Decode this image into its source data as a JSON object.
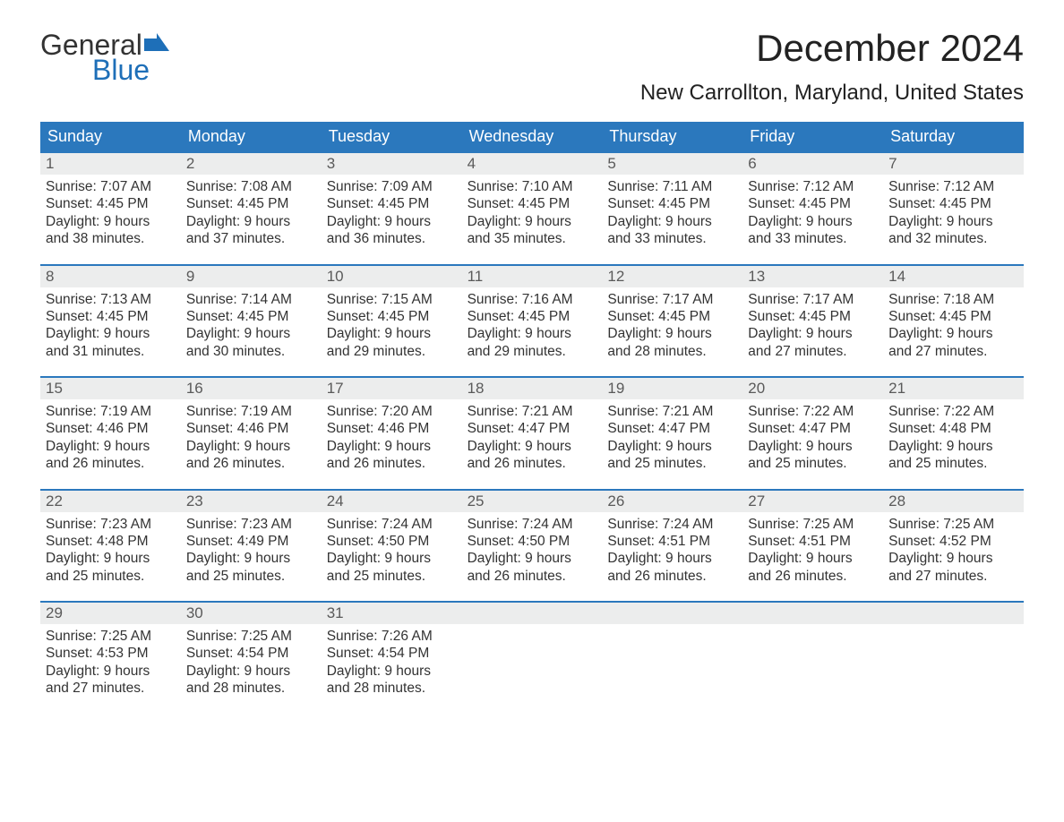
{
  "logo": {
    "word1": "General",
    "word2": "Blue",
    "flag_color": "#1e6fb8"
  },
  "title": "December 2024",
  "location": "New Carrollton, Maryland, United States",
  "colors": {
    "header_bg": "#2b78bd",
    "header_text": "#ffffff",
    "week_border": "#2b78bd",
    "daynum_bg": "#eceded",
    "daynum_text": "#5a5a5a",
    "body_text": "#333333",
    "background": "#ffffff"
  },
  "typography": {
    "title_fontsize": 42,
    "location_fontsize": 24,
    "dayheader_fontsize": 18,
    "daynum_fontsize": 17,
    "cell_fontsize": 15.5
  },
  "day_headers": [
    "Sunday",
    "Monday",
    "Tuesday",
    "Wednesday",
    "Thursday",
    "Friday",
    "Saturday"
  ],
  "labels": {
    "sunrise": "Sunrise:",
    "sunset": "Sunset:",
    "daylight": "Daylight:"
  },
  "weeks": [
    [
      {
        "n": "1",
        "sunrise": "7:07 AM",
        "sunset": "4:45 PM",
        "dl1": "9 hours",
        "dl2": "and 38 minutes."
      },
      {
        "n": "2",
        "sunrise": "7:08 AM",
        "sunset": "4:45 PM",
        "dl1": "9 hours",
        "dl2": "and 37 minutes."
      },
      {
        "n": "3",
        "sunrise": "7:09 AM",
        "sunset": "4:45 PM",
        "dl1": "9 hours",
        "dl2": "and 36 minutes."
      },
      {
        "n": "4",
        "sunrise": "7:10 AM",
        "sunset": "4:45 PM",
        "dl1": "9 hours",
        "dl2": "and 35 minutes."
      },
      {
        "n": "5",
        "sunrise": "7:11 AM",
        "sunset": "4:45 PM",
        "dl1": "9 hours",
        "dl2": "and 33 minutes."
      },
      {
        "n": "6",
        "sunrise": "7:12 AM",
        "sunset": "4:45 PM",
        "dl1": "9 hours",
        "dl2": "and 33 minutes."
      },
      {
        "n": "7",
        "sunrise": "7:12 AM",
        "sunset": "4:45 PM",
        "dl1": "9 hours",
        "dl2": "and 32 minutes."
      }
    ],
    [
      {
        "n": "8",
        "sunrise": "7:13 AM",
        "sunset": "4:45 PM",
        "dl1": "9 hours",
        "dl2": "and 31 minutes."
      },
      {
        "n": "9",
        "sunrise": "7:14 AM",
        "sunset": "4:45 PM",
        "dl1": "9 hours",
        "dl2": "and 30 minutes."
      },
      {
        "n": "10",
        "sunrise": "7:15 AM",
        "sunset": "4:45 PM",
        "dl1": "9 hours",
        "dl2": "and 29 minutes."
      },
      {
        "n": "11",
        "sunrise": "7:16 AM",
        "sunset": "4:45 PM",
        "dl1": "9 hours",
        "dl2": "and 29 minutes."
      },
      {
        "n": "12",
        "sunrise": "7:17 AM",
        "sunset": "4:45 PM",
        "dl1": "9 hours",
        "dl2": "and 28 minutes."
      },
      {
        "n": "13",
        "sunrise": "7:17 AM",
        "sunset": "4:45 PM",
        "dl1": "9 hours",
        "dl2": "and 27 minutes."
      },
      {
        "n": "14",
        "sunrise": "7:18 AM",
        "sunset": "4:45 PM",
        "dl1": "9 hours",
        "dl2": "and 27 minutes."
      }
    ],
    [
      {
        "n": "15",
        "sunrise": "7:19 AM",
        "sunset": "4:46 PM",
        "dl1": "9 hours",
        "dl2": "and 26 minutes."
      },
      {
        "n": "16",
        "sunrise": "7:19 AM",
        "sunset": "4:46 PM",
        "dl1": "9 hours",
        "dl2": "and 26 minutes."
      },
      {
        "n": "17",
        "sunrise": "7:20 AM",
        "sunset": "4:46 PM",
        "dl1": "9 hours",
        "dl2": "and 26 minutes."
      },
      {
        "n": "18",
        "sunrise": "7:21 AM",
        "sunset": "4:47 PM",
        "dl1": "9 hours",
        "dl2": "and 26 minutes."
      },
      {
        "n": "19",
        "sunrise": "7:21 AM",
        "sunset": "4:47 PM",
        "dl1": "9 hours",
        "dl2": "and 25 minutes."
      },
      {
        "n": "20",
        "sunrise": "7:22 AM",
        "sunset": "4:47 PM",
        "dl1": "9 hours",
        "dl2": "and 25 minutes."
      },
      {
        "n": "21",
        "sunrise": "7:22 AM",
        "sunset": "4:48 PM",
        "dl1": "9 hours",
        "dl2": "and 25 minutes."
      }
    ],
    [
      {
        "n": "22",
        "sunrise": "7:23 AM",
        "sunset": "4:48 PM",
        "dl1": "9 hours",
        "dl2": "and 25 minutes."
      },
      {
        "n": "23",
        "sunrise": "7:23 AM",
        "sunset": "4:49 PM",
        "dl1": "9 hours",
        "dl2": "and 25 minutes."
      },
      {
        "n": "24",
        "sunrise": "7:24 AM",
        "sunset": "4:50 PM",
        "dl1": "9 hours",
        "dl2": "and 25 minutes."
      },
      {
        "n": "25",
        "sunrise": "7:24 AM",
        "sunset": "4:50 PM",
        "dl1": "9 hours",
        "dl2": "and 26 minutes."
      },
      {
        "n": "26",
        "sunrise": "7:24 AM",
        "sunset": "4:51 PM",
        "dl1": "9 hours",
        "dl2": "and 26 minutes."
      },
      {
        "n": "27",
        "sunrise": "7:25 AM",
        "sunset": "4:51 PM",
        "dl1": "9 hours",
        "dl2": "and 26 minutes."
      },
      {
        "n": "28",
        "sunrise": "7:25 AM",
        "sunset": "4:52 PM",
        "dl1": "9 hours",
        "dl2": "and 27 minutes."
      }
    ],
    [
      {
        "n": "29",
        "sunrise": "7:25 AM",
        "sunset": "4:53 PM",
        "dl1": "9 hours",
        "dl2": "and 27 minutes."
      },
      {
        "n": "30",
        "sunrise": "7:25 AM",
        "sunset": "4:54 PM",
        "dl1": "9 hours",
        "dl2": "and 28 minutes."
      },
      {
        "n": "31",
        "sunrise": "7:26 AM",
        "sunset": "4:54 PM",
        "dl1": "9 hours",
        "dl2": "and 28 minutes."
      },
      null,
      null,
      null,
      null
    ]
  ]
}
